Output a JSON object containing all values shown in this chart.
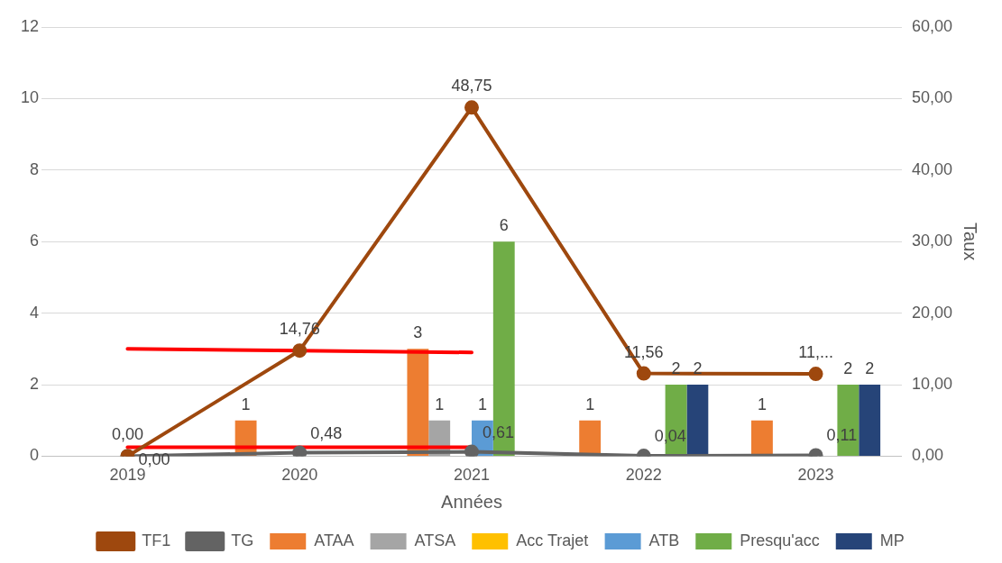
{
  "chart_data": {
    "type": "bar",
    "xlabel": "Années",
    "y2label": "Taux",
    "categories": [
      "2019",
      "2020",
      "2021",
      "2022",
      "2023"
    ],
    "series": [
      {
        "name": "ATAA",
        "color": "#ed7d31",
        "values": [
          null,
          1,
          3,
          1,
          1
        ],
        "value_labels": [
          null,
          "1",
          "3",
          "1",
          "1"
        ]
      },
      {
        "name": "ATSA",
        "color": "#a5a5a5",
        "values": [
          null,
          null,
          1,
          null,
          null
        ],
        "value_labels": [
          null,
          null,
          "1",
          null,
          null
        ]
      },
      {
        "name": "Acc Trajet",
        "color": "#ffc000",
        "values": [
          null,
          null,
          null,
          null,
          null
        ]
      },
      {
        "name": "ATB",
        "color": "#5b9bd5",
        "values": [
          null,
          null,
          1,
          null,
          null
        ],
        "value_labels": [
          null,
          null,
          "1",
          null,
          null
        ]
      },
      {
        "name": "Presqu'acc",
        "color": "#70ad47",
        "values": [
          null,
          null,
          6,
          2,
          2
        ],
        "value_labels": [
          null,
          null,
          "6",
          "2",
          "2"
        ]
      },
      {
        "name": "MP",
        "color": "#264478",
        "values": [
          null,
          null,
          null,
          2,
          2
        ],
        "value_labels": [
          null,
          null,
          null,
          "2",
          "2"
        ]
      },
      {
        "name": "TF1",
        "type": "line",
        "axis": "y2",
        "color": "#9e480e",
        "values": [
          0,
          14.76,
          48.75,
          11.56,
          11.5
        ],
        "value_labels": [
          "0,00",
          "14,76",
          "48,75",
          "11,56",
          "11,..."
        ]
      },
      {
        "name": "TG",
        "type": "line",
        "axis": "y2",
        "color": "#636363",
        "values": [
          0,
          0.48,
          0.61,
          0.04,
          0.11
        ],
        "value_labels": [
          "0,00",
          "0,48",
          "0,61",
          "0,04",
          "0,11"
        ]
      },
      {
        "type": "line",
        "color": "#ff0000",
        "marker": "none",
        "values": [
          3,
          2.95,
          2.9,
          null,
          null
        ]
      },
      {
        "type": "line",
        "color": "#ff0000",
        "marker": "none",
        "values": [
          0.25,
          0.25,
          0.25,
          null,
          null
        ]
      }
    ],
    "ylim": [
      0,
      12
    ],
    "yticks": [
      0,
      2,
      4,
      6,
      8,
      10,
      12
    ],
    "y2lim": [
      0,
      60
    ],
    "y2ticks": [
      {
        "value": 0,
        "label": "0,00"
      },
      {
        "value": 10,
        "label": "10,00"
      },
      {
        "value": 20,
        "label": "20,00"
      },
      {
        "value": 30,
        "label": "30,00"
      },
      {
        "value": 40,
        "label": "40,00"
      },
      {
        "value": 50,
        "label": "50,00"
      },
      {
        "value": 60,
        "label": "60,00"
      }
    ],
    "grid": "y",
    "legend": "bottom",
    "marker": "circle"
  }
}
